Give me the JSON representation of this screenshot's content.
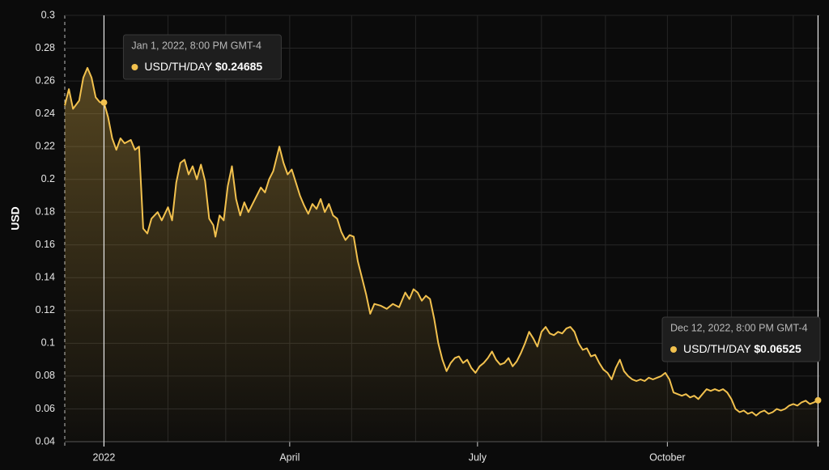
{
  "chart_data": {
    "type": "line",
    "ylabel": "USD",
    "ylim": [
      0.04,
      0.3
    ],
    "yticks": [
      0.04,
      0.06,
      0.08,
      0.1,
      0.12,
      0.14,
      0.16,
      0.18,
      0.2,
      0.22,
      0.24,
      0.26,
      0.28,
      0.3
    ],
    "xlim": [
      -19,
      347
    ],
    "xticks": [
      {
        "value": 0,
        "label": "2022"
      },
      {
        "value": 90,
        "label": "April"
      },
      {
        "value": 181,
        "label": "July"
      },
      {
        "value": 273,
        "label": "October"
      }
    ],
    "x_minor_ticks": [
      31,
      59,
      120,
      151,
      212,
      243,
      304,
      334
    ],
    "grid": true,
    "x": [
      -19,
      -17,
      -15,
      -12,
      -10,
      -8,
      -6,
      -4,
      -2,
      0,
      2,
      4,
      6,
      8,
      10,
      13,
      15,
      17,
      19,
      21,
      23,
      26,
      28,
      31,
      33,
      35,
      37,
      39,
      41,
      43,
      45,
      47,
      49,
      51,
      53,
      54,
      56,
      58,
      60,
      62,
      64,
      66,
      68,
      70,
      72,
      74,
      76,
      78,
      80,
      82,
      85,
      87,
      89,
      91,
      93,
      95,
      97,
      99,
      101,
      103,
      105,
      107,
      109,
      111,
      113,
      115,
      117,
      119,
      121,
      123,
      125,
      127,
      129,
      131,
      134,
      137,
      140,
      143,
      146,
      148,
      150,
      152,
      154,
      156,
      158,
      160,
      162,
      164,
      166,
      168,
      170,
      172,
      174,
      176,
      178,
      180,
      182,
      184,
      186,
      188,
      190,
      192,
      194,
      196,
      198,
      200,
      202,
      204,
      206,
      208,
      210,
      212,
      214,
      216,
      218,
      220,
      222,
      224,
      226,
      228,
      230,
      232,
      234,
      236,
      238,
      240,
      242,
      244,
      246,
      248,
      250,
      252,
      254,
      256,
      258,
      260,
      262,
      264,
      266,
      268,
      270,
      272,
      274,
      276,
      278,
      280,
      282,
      284,
      286,
      288,
      290,
      292,
      294,
      296,
      298,
      300,
      302,
      304,
      306,
      308,
      310,
      312,
      314,
      316,
      318,
      320,
      322,
      324,
      326,
      328,
      330,
      332,
      334,
      336,
      338,
      340,
      342,
      344,
      346
    ],
    "series": [
      {
        "name": "USD/TH/DAY",
        "color": "#f2c14e",
        "values": [
          0.245,
          0.255,
          0.243,
          0.248,
          0.262,
          0.268,
          0.262,
          0.25,
          0.247,
          0.24685,
          0.238,
          0.225,
          0.218,
          0.225,
          0.222,
          0.224,
          0.218,
          0.22,
          0.17,
          0.167,
          0.176,
          0.18,
          0.175,
          0.183,
          0.175,
          0.198,
          0.21,
          0.212,
          0.203,
          0.208,
          0.2,
          0.209,
          0.199,
          0.176,
          0.172,
          0.165,
          0.178,
          0.175,
          0.196,
          0.208,
          0.188,
          0.178,
          0.186,
          0.18,
          0.185,
          0.19,
          0.195,
          0.192,
          0.2,
          0.205,
          0.22,
          0.21,
          0.203,
          0.206,
          0.198,
          0.19,
          0.184,
          0.179,
          0.185,
          0.182,
          0.188,
          0.18,
          0.185,
          0.178,
          0.176,
          0.168,
          0.163,
          0.166,
          0.165,
          0.15,
          0.14,
          0.13,
          0.118,
          0.124,
          0.123,
          0.121,
          0.124,
          0.122,
          0.131,
          0.127,
          0.133,
          0.131,
          0.126,
          0.129,
          0.127,
          0.115,
          0.1,
          0.09,
          0.083,
          0.088,
          0.091,
          0.092,
          0.088,
          0.09,
          0.085,
          0.082,
          0.086,
          0.088,
          0.091,
          0.095,
          0.09,
          0.087,
          0.088,
          0.091,
          0.086,
          0.089,
          0.094,
          0.1,
          0.107,
          0.103,
          0.098,
          0.107,
          0.11,
          0.106,
          0.105,
          0.107,
          0.106,
          0.109,
          0.11,
          0.107,
          0.1,
          0.096,
          0.097,
          0.092,
          0.093,
          0.088,
          0.084,
          0.082,
          0.078,
          0.085,
          0.09,
          0.083,
          0.08,
          0.078,
          0.077,
          0.078,
          0.077,
          0.079,
          0.078,
          0.079,
          0.08,
          0.082,
          0.078,
          0.07,
          0.069,
          0.068,
          0.069,
          0.067,
          0.068,
          0.066,
          0.069,
          0.072,
          0.071,
          0.072,
          0.071,
          0.072,
          0.07,
          0.066,
          0.06,
          0.058,
          0.059,
          0.057,
          0.058,
          0.056,
          0.058,
          0.059,
          0.057,
          0.058,
          0.06,
          0.059,
          0.06,
          0.062,
          0.063,
          0.062,
          0.064,
          0.065,
          0.063,
          0.064,
          0.06525
        ]
      }
    ],
    "tooltips": [
      {
        "title": "Jan 1, 2022, 8:00 PM GMT-4",
        "value_label": "$0.24685"
      },
      {
        "title": "Dec 12, 2022, 8:00 PM GMT-4",
        "value_label": "$0.06525"
      }
    ]
  }
}
